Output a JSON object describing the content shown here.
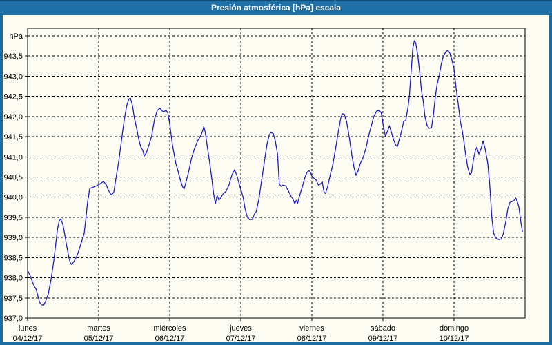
{
  "window": {
    "title": "Presión atmosférica [hPa] escala"
  },
  "colors": {
    "frame": "#1d6da3",
    "titlebar": "#1f70a7",
    "titlebar_top_edge": "#0f4f7c",
    "title_text": "#ffffff",
    "plot_background": "#fdfdf4",
    "grid": "#000000",
    "line": "#1c1ccd",
    "label_text": "#000000"
  },
  "chart_data": {
    "type": "line",
    "title": "Presión atmosférica [hPa] escala",
    "ylabel": "hPa",
    "xlabel": "",
    "grid": "dashed",
    "legend": "none",
    "ylim": [
      937.0,
      944.0
    ],
    "ytick_step": 0.5,
    "x_total_hours": 168,
    "y_ticks": [
      {
        "value": 944.0,
        "label": "hPa"
      },
      {
        "value": 943.5,
        "label": "943,5"
      },
      {
        "value": 943.0,
        "label": "943,0"
      },
      {
        "value": 942.5,
        "label": "942,5"
      },
      {
        "value": 942.0,
        "label": "942,0"
      },
      {
        "value": 941.5,
        "label": "941,5"
      },
      {
        "value": 941.0,
        "label": "941,0"
      },
      {
        "value": 940.5,
        "label": "940,5"
      },
      {
        "value": 940.0,
        "label": "940,0"
      },
      {
        "value": 939.5,
        "label": "939,5"
      },
      {
        "value": 939.0,
        "label": "939,0"
      },
      {
        "value": 938.5,
        "label": "938,5"
      },
      {
        "value": 938.0,
        "label": "938,0"
      },
      {
        "value": 937.5,
        "label": "937,5"
      },
      {
        "value": 937.0,
        "label": "937,0"
      }
    ],
    "days": [
      {
        "name": "lunes",
        "date": "04/12/17"
      },
      {
        "name": "martes",
        "date": "05/12/17"
      },
      {
        "name": "miércoles",
        "date": "06/12/17"
      },
      {
        "name": "jueves",
        "date": "07/12/17"
      },
      {
        "name": "viernes",
        "date": "08/12/17"
      },
      {
        "name": "sábado",
        "date": "09/12/17"
      },
      {
        "name": "domingo",
        "date": "10/12/17"
      }
    ],
    "series": [
      {
        "name": "Presión atmosférica",
        "unit": "hPa",
        "color": "#1c1ccd",
        "points": [
          [
            0,
            938.18
          ],
          [
            0.9,
            938.05
          ],
          [
            1.6,
            937.9
          ],
          [
            2.3,
            937.78
          ],
          [
            2.8,
            937.73
          ],
          [
            3.3,
            937.6
          ],
          [
            4.0,
            937.4
          ],
          [
            4.7,
            937.33
          ],
          [
            5.4,
            937.32
          ],
          [
            6.1,
            937.42
          ],
          [
            7.0,
            937.6
          ],
          [
            7.9,
            937.95
          ],
          [
            8.9,
            938.45
          ],
          [
            9.6,
            938.9
          ],
          [
            10.1,
            939.2
          ],
          [
            10.7,
            939.42
          ],
          [
            11.2,
            939.46
          ],
          [
            11.9,
            939.32
          ],
          [
            12.6,
            939.05
          ],
          [
            13.3,
            938.75
          ],
          [
            14.0,
            938.48
          ],
          [
            14.5,
            938.36
          ],
          [
            14.9,
            938.33
          ],
          [
            15.8,
            938.42
          ],
          [
            16.5,
            938.52
          ],
          [
            17.2,
            938.65
          ],
          [
            17.9,
            938.82
          ],
          [
            18.6,
            938.98
          ],
          [
            19.1,
            939.1
          ],
          [
            19.6,
            939.42
          ],
          [
            20.3,
            939.9
          ],
          [
            21.0,
            940.22
          ],
          [
            21.9,
            940.24
          ],
          [
            22.9,
            940.27
          ],
          [
            23.8,
            940.3
          ],
          [
            24.7,
            940.34
          ],
          [
            25.6,
            940.39
          ],
          [
            26.6,
            940.3
          ],
          [
            27.3,
            940.17
          ],
          [
            28.0,
            940.08
          ],
          [
            28.4,
            940.06
          ],
          [
            29.1,
            940.12
          ],
          [
            29.8,
            940.45
          ],
          [
            30.8,
            940.9
          ],
          [
            31.7,
            941.4
          ],
          [
            32.6,
            941.9
          ],
          [
            33.5,
            942.28
          ],
          [
            34.2,
            942.43
          ],
          [
            34.7,
            942.46
          ],
          [
            35.4,
            942.28
          ],
          [
            36.1,
            941.95
          ],
          [
            36.8,
            941.72
          ],
          [
            37.5,
            941.45
          ],
          [
            38.2,
            941.25
          ],
          [
            38.9,
            941.16
          ],
          [
            39.4,
            941.02
          ],
          [
            40.1,
            941.1
          ],
          [
            41.0,
            941.3
          ],
          [
            41.9,
            941.52
          ],
          [
            42.9,
            941.95
          ],
          [
            43.8,
            942.15
          ],
          [
            44.7,
            942.21
          ],
          [
            45.4,
            942.14
          ],
          [
            45.9,
            942.12
          ],
          [
            46.8,
            942.15
          ],
          [
            47.4,
            942.08
          ],
          [
            48.0,
            941.81
          ],
          [
            48.9,
            941.3
          ],
          [
            50.0,
            940.85
          ],
          [
            50.5,
            940.73
          ],
          [
            51.7,
            940.39
          ],
          [
            52.4,
            940.25
          ],
          [
            52.9,
            940.21
          ],
          [
            53.3,
            940.32
          ],
          [
            54.3,
            940.6
          ],
          [
            55.3,
            940.95
          ],
          [
            56.4,
            941.21
          ],
          [
            57.5,
            941.41
          ],
          [
            58.3,
            941.5
          ],
          [
            59.0,
            941.62
          ],
          [
            59.5,
            941.75
          ],
          [
            60.0,
            941.6
          ],
          [
            60.8,
            941.2
          ],
          [
            61.5,
            940.85
          ],
          [
            62.1,
            940.52
          ],
          [
            62.8,
            940.1
          ],
          [
            63.4,
            939.84
          ],
          [
            64.0,
            940.04
          ],
          [
            64.6,
            939.93
          ],
          [
            65.2,
            939.98
          ],
          [
            66.0,
            940.08
          ],
          [
            67.0,
            940.14
          ],
          [
            68.0,
            940.3
          ],
          [
            69.0,
            940.55
          ],
          [
            69.9,
            940.68
          ],
          [
            70.6,
            940.55
          ],
          [
            71.5,
            940.31
          ],
          [
            72.3,
            940.12
          ],
          [
            72.8,
            940.0
          ],
          [
            73.4,
            939.73
          ],
          [
            74.2,
            939.5
          ],
          [
            75.0,
            939.44
          ],
          [
            75.9,
            939.45
          ],
          [
            76.6,
            939.58
          ],
          [
            77.2,
            939.64
          ],
          [
            78.1,
            939.95
          ],
          [
            79.0,
            940.4
          ],
          [
            79.9,
            940.85
          ],
          [
            80.8,
            941.3
          ],
          [
            81.6,
            941.55
          ],
          [
            82.2,
            941.61
          ],
          [
            83.0,
            941.57
          ],
          [
            83.7,
            941.38
          ],
          [
            84.4,
            941.07
          ],
          [
            85.0,
            940.32
          ],
          [
            85.6,
            940.27
          ],
          [
            86.3,
            940.3
          ],
          [
            87.2,
            940.28
          ],
          [
            88.1,
            940.15
          ],
          [
            88.9,
            940.03
          ],
          [
            89.6,
            939.96
          ],
          [
            90.2,
            939.84
          ],
          [
            90.7,
            939.92
          ],
          [
            91.2,
            939.85
          ],
          [
            91.9,
            940.05
          ],
          [
            92.8,
            940.27
          ],
          [
            93.7,
            940.5
          ],
          [
            94.4,
            940.62
          ],
          [
            95.1,
            940.66
          ],
          [
            95.6,
            940.6
          ],
          [
            96.0,
            940.52
          ],
          [
            96.7,
            940.47
          ],
          [
            97.5,
            940.42
          ],
          [
            98.2,
            940.3
          ],
          [
            99.0,
            940.33
          ],
          [
            99.5,
            940.38
          ],
          [
            100.1,
            940.13
          ],
          [
            100.6,
            940.09
          ],
          [
            101.3,
            940.25
          ],
          [
            102.2,
            940.55
          ],
          [
            103.1,
            940.82
          ],
          [
            104.0,
            941.2
          ],
          [
            105.0,
            941.65
          ],
          [
            105.8,
            941.98
          ],
          [
            106.3,
            942.07
          ],
          [
            107.0,
            942.05
          ],
          [
            107.8,
            941.85
          ],
          [
            108.7,
            941.45
          ],
          [
            109.5,
            941.05
          ],
          [
            110.2,
            940.75
          ],
          [
            110.9,
            940.54
          ],
          [
            111.6,
            940.65
          ],
          [
            112.3,
            940.83
          ],
          [
            113.2,
            940.96
          ],
          [
            114.2,
            941.2
          ],
          [
            115.1,
            941.5
          ],
          [
            116.0,
            941.75
          ],
          [
            116.9,
            942.0
          ],
          [
            117.8,
            942.13
          ],
          [
            118.7,
            942.15
          ],
          [
            119.4,
            942.1
          ],
          [
            120.1,
            941.78
          ],
          [
            120.8,
            941.52
          ],
          [
            121.5,
            941.62
          ],
          [
            122.2,
            941.77
          ],
          [
            122.9,
            941.6
          ],
          [
            123.6,
            941.42
          ],
          [
            124.4,
            941.28
          ],
          [
            124.9,
            941.26
          ],
          [
            125.6,
            941.45
          ],
          [
            126.3,
            941.64
          ],
          [
            127.0,
            941.88
          ],
          [
            127.7,
            941.9
          ],
          [
            128.4,
            942.2
          ],
          [
            128.9,
            942.49
          ],
          [
            129.5,
            943.1
          ],
          [
            130.1,
            943.7
          ],
          [
            130.6,
            943.88
          ],
          [
            131.1,
            943.82
          ],
          [
            131.8,
            943.5
          ],
          [
            132.4,
            943.1
          ],
          [
            133.0,
            942.65
          ],
          [
            133.6,
            942.38
          ],
          [
            134.2,
            942.0
          ],
          [
            134.9,
            941.78
          ],
          [
            135.6,
            941.71
          ],
          [
            136.4,
            941.72
          ],
          [
            137.0,
            942.03
          ],
          [
            137.7,
            942.5
          ],
          [
            138.3,
            942.8
          ],
          [
            139.0,
            943.01
          ],
          [
            139.7,
            943.3
          ],
          [
            140.4,
            943.5
          ],
          [
            141.2,
            943.6
          ],
          [
            141.9,
            943.64
          ],
          [
            142.6,
            943.57
          ],
          [
            143.3,
            943.4
          ],
          [
            144.0,
            943.18
          ],
          [
            144.7,
            942.7
          ],
          [
            145.4,
            942.32
          ],
          [
            146.1,
            941.9
          ],
          [
            146.8,
            941.64
          ],
          [
            147.5,
            941.3
          ],
          [
            147.9,
            941.07
          ],
          [
            148.6,
            940.75
          ],
          [
            149.3,
            940.57
          ],
          [
            149.9,
            940.6
          ],
          [
            150.6,
            940.95
          ],
          [
            151.2,
            941.15
          ],
          [
            151.7,
            941.24
          ],
          [
            152.4,
            941.07
          ],
          [
            153.1,
            941.2
          ],
          [
            153.8,
            941.39
          ],
          [
            154.5,
            941.2
          ],
          [
            155.4,
            940.84
          ],
          [
            156.1,
            940.27
          ],
          [
            156.8,
            939.47
          ],
          [
            157.4,
            939.1
          ],
          [
            158.2,
            938.98
          ],
          [
            159.0,
            938.95
          ],
          [
            159.9,
            938.96
          ],
          [
            160.6,
            939.08
          ],
          [
            161.5,
            939.4
          ],
          [
            162.2,
            939.72
          ],
          [
            162.9,
            939.87
          ],
          [
            163.8,
            939.9
          ],
          [
            164.5,
            939.93
          ],
          [
            164.9,
            939.98
          ],
          [
            165.5,
            939.85
          ],
          [
            165.9,
            939.76
          ],
          [
            166.5,
            939.41
          ],
          [
            167.1,
            939.15
          ]
        ]
      }
    ]
  }
}
